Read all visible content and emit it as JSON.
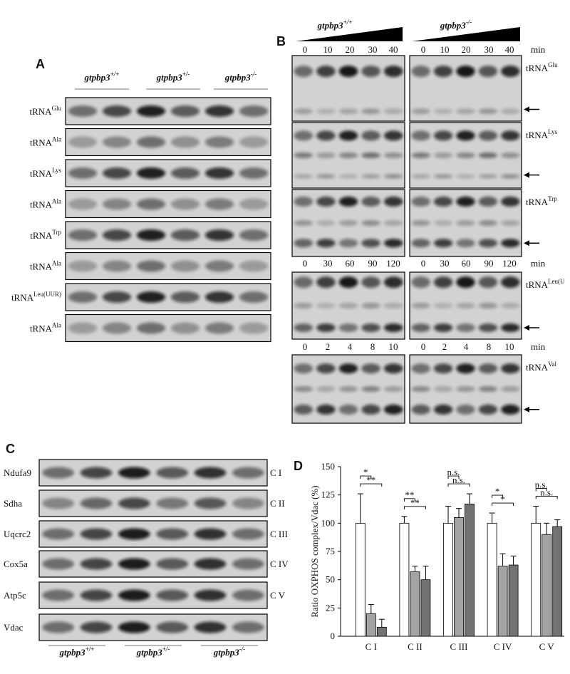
{
  "panel_a": {
    "label": "A",
    "genotypes": [
      {
        "name": "gtpbp3",
        "sup": "+/+"
      },
      {
        "name": "gtpbp3",
        "sup": "+/-"
      },
      {
        "name": "gtpbp3",
        "sup": "-/-"
      }
    ],
    "rows": [
      {
        "name": "tRNA",
        "sup": "Glu"
      },
      {
        "name": "tRNA",
        "sup": "Ala"
      },
      {
        "name": "tRNA",
        "sup": "Lys"
      },
      {
        "name": "tRNA",
        "sup": "Ala"
      },
      {
        "name": "tRNA",
        "sup": "Trp"
      },
      {
        "name": "tRNA",
        "sup": "Ala"
      },
      {
        "name": "tRNA",
        "sup": "Leu(UUR)"
      },
      {
        "name": "tRNA",
        "sup": "Ala"
      }
    ]
  },
  "panel_b": {
    "label": "B",
    "genotypes": [
      {
        "name": "gtpbp3",
        "sup": "+/+"
      },
      {
        "name": "gtpbp3",
        "sup": "-/-"
      }
    ],
    "time_unit": "min",
    "time_rows": [
      [
        "0",
        "10",
        "20",
        "30",
        "40"
      ],
      [
        "0",
        "30",
        "60",
        "90",
        "120"
      ],
      [
        "0",
        "2",
        "4",
        "8",
        "10"
      ]
    ],
    "rows": [
      {
        "name": "tRNA",
        "sup": "Glu"
      },
      {
        "name": "tRNA",
        "sup": "Lys"
      },
      {
        "name": "tRNA",
        "sup": "Trp"
      },
      {
        "name": "tRNA",
        "sup": "Leu(U"
      },
      {
        "name": "tRNA",
        "sup": "Val"
      }
    ]
  },
  "panel_c": {
    "label": "C",
    "rows": [
      {
        "protein": "Ndufa9",
        "complex": "C I"
      },
      {
        "protein": "Sdha",
        "complex": "C II"
      },
      {
        "protein": "Uqcrc2",
        "complex": "C III"
      },
      {
        "protein": "Cox5a",
        "complex": "C IV"
      },
      {
        "protein": "Atp5c",
        "complex": "C V"
      },
      {
        "protein": "Vdac"
      }
    ],
    "genotypes": [
      {
        "name": "gtpbp3",
        "sup": "+/+"
      },
      {
        "name": "gtpbp3",
        "sup": "+/-"
      },
      {
        "name": "gtpbp3",
        "sup": "-/-"
      }
    ]
  },
  "chart_data": {
    "type": "bar",
    "panel_label": "D",
    "ylabel": "Ratio OXPHOS complex/Vdac (%)",
    "categories": [
      "C I",
      "C II",
      "C III",
      "C IV",
      "C V"
    ],
    "series": [
      {
        "color": "#ffffff",
        "values": [
          100,
          100,
          100,
          100,
          100
        ],
        "errors": [
          26,
          6,
          15,
          9,
          15
        ]
      },
      {
        "color": "#a3a3a3",
        "values": [
          20,
          57,
          105,
          62,
          90
        ],
        "errors": [
          8,
          5,
          8,
          11,
          10
        ]
      },
      {
        "color": "#737373",
        "values": [
          8,
          50,
          117,
          63,
          97
        ],
        "errors": [
          7,
          12,
          9,
          8,
          6
        ]
      }
    ],
    "ylim": [
      0,
      150
    ],
    "yticks": [
      0,
      25,
      50,
      75,
      100,
      125,
      150
    ],
    "significance": [
      {
        "category": 0,
        "from": 0,
        "to": 1,
        "label": "*"
      },
      {
        "category": 0,
        "from": 0,
        "to": 2,
        "label": "**"
      },
      {
        "category": 1,
        "from": 0,
        "to": 1,
        "label": "**"
      },
      {
        "category": 1,
        "from": 0,
        "to": 2,
        "label": "**"
      },
      {
        "category": 2,
        "from": 0,
        "to": 1,
        "label": "n.s."
      },
      {
        "category": 2,
        "from": 0,
        "to": 2,
        "label": "n.s."
      },
      {
        "category": 3,
        "from": 0,
        "to": 1,
        "label": "*"
      },
      {
        "category": 3,
        "from": 0,
        "to": 2,
        "label": "*"
      },
      {
        "category": 4,
        "from": 0,
        "to": 1,
        "label": "n.s."
      },
      {
        "category": 4,
        "from": 0,
        "to": 2,
        "label": "n.s."
      }
    ]
  }
}
